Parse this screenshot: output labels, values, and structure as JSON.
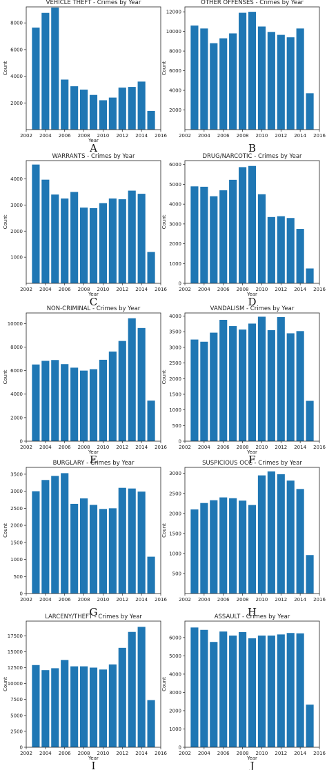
{
  "chart_data": [
    {
      "panel_letter": "A",
      "type": "bar",
      "title": "VEHICLE THEFT - Crimes by Year",
      "xlabel": "Year",
      "ylabel": "Count",
      "x": [
        2003,
        2004,
        2005,
        2006,
        2007,
        2008,
        2009,
        2010,
        2011,
        2012,
        2013,
        2014,
        2015
      ],
      "values": [
        7650,
        8750,
        9150,
        3750,
        3250,
        3000,
        2600,
        2200,
        2400,
        3150,
        3200,
        3600,
        1400
      ],
      "xlim": [
        2002,
        2016
      ],
      "ylim": [
        0,
        9200
      ],
      "xticks": [
        2002,
        2004,
        2006,
        2008,
        2010,
        2012,
        2014,
        2016
      ],
      "yticks": [
        2000,
        4000,
        6000,
        8000
      ],
      "ytick_labels": [
        "2000",
        "4000",
        "6000",
        "8000"
      ],
      "color": "#1f77b4",
      "grid": false
    },
    {
      "panel_letter": "B",
      "type": "bar",
      "title": "OTHER OFFENSES - Crimes by Year",
      "xlabel": "",
      "ylabel": "Count",
      "x": [
        2003,
        2004,
        2005,
        2006,
        2007,
        2008,
        2009,
        2010,
        2011,
        2012,
        2013,
        2014,
        2015
      ],
      "values": [
        10600,
        10300,
        8800,
        9300,
        9800,
        11900,
        12000,
        10500,
        9950,
        9650,
        9400,
        10300,
        3700
      ],
      "xlim": [
        2002,
        2016
      ],
      "ylim": [
        0,
        12500
      ],
      "xticks": [
        2002,
        2004,
        2006,
        2008,
        2010,
        2012,
        2014,
        2016
      ],
      "yticks": [
        2000,
        4000,
        6000,
        8000,
        10000,
        12000
      ],
      "ytick_labels": [
        "2000",
        "4000",
        "6000",
        "8000",
        "10000",
        "12000"
      ],
      "color": "#1f77b4",
      "grid": false
    },
    {
      "panel_letter": "C",
      "type": "bar",
      "title": "WARRANTS - Crimes by Year",
      "xlabel": "Year",
      "ylabel": "Count",
      "x": [
        2003,
        2004,
        2005,
        2006,
        2007,
        2008,
        2009,
        2010,
        2011,
        2012,
        2013,
        2014,
        2015
      ],
      "values": [
        4550,
        3970,
        3400,
        3250,
        3500,
        2900,
        2880,
        3070,
        3250,
        3220,
        3550,
        3430,
        1200
      ],
      "xlim": [
        2002,
        2016
      ],
      "ylim": [
        0,
        4700
      ],
      "xticks": [
        2002,
        2004,
        2006,
        2008,
        2010,
        2012,
        2014,
        2016
      ],
      "yticks": [
        1000,
        2000,
        3000,
        4000
      ],
      "ytick_labels": [
        "1000",
        "2000",
        "3000",
        "4000"
      ],
      "color": "#1f77b4",
      "grid": false
    },
    {
      "panel_letter": "D",
      "type": "bar",
      "title": "DRUG/NARCOTIC - Crimes by Year",
      "xlabel": "Year",
      "ylabel": "Count",
      "x": [
        2003,
        2004,
        2005,
        2006,
        2007,
        2008,
        2009,
        2010,
        2011,
        2012,
        2013,
        2014,
        2015
      ],
      "values": [
        4900,
        4880,
        4400,
        4700,
        5230,
        5870,
        5930,
        4500,
        3350,
        3390,
        3300,
        2750,
        750
      ],
      "xlim": [
        2002,
        2016
      ],
      "ylim": [
        0,
        6200
      ],
      "xticks": [
        2002,
        2004,
        2006,
        2008,
        2010,
        2012,
        2014,
        2016
      ],
      "xtick_labels": [
        "2002",
        "2004",
        "2006",
        "2008",
        "2010",
        "2012",
        "2014",
        "2016"
      ],
      "yticks": [
        0,
        1000,
        2000,
        3000,
        4000,
        5000,
        6000
      ],
      "ytick_labels": [
        "0",
        "1000",
        "2000",
        "3000",
        "4000",
        "5000",
        "6000"
      ],
      "color": "#1f77b4",
      "grid": false
    },
    {
      "panel_letter": "E",
      "type": "bar",
      "title": "NON-CRIMINAL - Crimes by Year",
      "xlabel": "Year",
      "ylabel": "Count",
      "x": [
        2003,
        2004,
        2005,
        2006,
        2007,
        2008,
        2009,
        2010,
        2011,
        2012,
        2013,
        2014,
        2015
      ],
      "values": [
        6520,
        6830,
        6900,
        6550,
        6250,
        6000,
        6120,
        6920,
        7620,
        8520,
        10450,
        9620,
        3450
      ],
      "xlim": [
        2002,
        2016
      ],
      "ylim": [
        0,
        10900
      ],
      "xticks": [
        2002,
        2004,
        2006,
        2008,
        2010,
        2012,
        2014,
        2016
      ],
      "yticks": [
        0,
        2000,
        4000,
        6000,
        8000,
        10000
      ],
      "ytick_labels": [
        "0",
        "2000",
        "4000",
        "6000",
        "8000",
        "10000"
      ],
      "color": "#1f77b4",
      "grid": false
    },
    {
      "panel_letter": "F",
      "type": "bar",
      "title": "VANDALISM - Crimes by Year",
      "xlabel": "Year",
      "ylabel": "Count",
      "x": [
        2003,
        2004,
        2005,
        2006,
        2007,
        2008,
        2009,
        2010,
        2011,
        2012,
        2013,
        2014,
        2015
      ],
      "values": [
        3250,
        3180,
        3470,
        3880,
        3680,
        3570,
        3760,
        3980,
        3550,
        3970,
        3450,
        3520,
        1290
      ],
      "xlim": [
        2002,
        2016
      ],
      "ylim": [
        0,
        4100
      ],
      "xticks": [
        2002,
        2004,
        2006,
        2008,
        2010,
        2012,
        2014,
        2016
      ],
      "yticks": [
        0,
        500,
        1000,
        1500,
        2000,
        2500,
        3000,
        3500,
        4000
      ],
      "ytick_labels": [
        "0",
        "500",
        "1000",
        "1500",
        "2000",
        "2500",
        "3000",
        "3500",
        "4000"
      ],
      "color": "#1f77b4",
      "grid": false
    },
    {
      "panel_letter": "G",
      "type": "bar",
      "title": "BURGLARY - Crimes by Year",
      "xlabel": "",
      "ylabel": "Count",
      "x": [
        2003,
        2004,
        2005,
        2006,
        2007,
        2008,
        2009,
        2010,
        2011,
        2012,
        2013,
        2014,
        2015
      ],
      "values": [
        3000,
        3330,
        3450,
        3530,
        2630,
        2790,
        2600,
        2480,
        2500,
        3100,
        3080,
        2990,
        1080
      ],
      "xlim": [
        2002,
        2016
      ],
      "ylim": [
        0,
        3700
      ],
      "xticks": [
        2002,
        2004,
        2006,
        2008,
        2010,
        2012,
        2014,
        2016
      ],
      "yticks": [
        0,
        500,
        1000,
        1500,
        2000,
        2500,
        3000,
        3500
      ],
      "ytick_labels": [
        "0",
        "500",
        "1000",
        "1500",
        "2000",
        "2500",
        "3000",
        "3500"
      ],
      "color": "#1f77b4",
      "grid": false
    },
    {
      "panel_letter": "H",
      "type": "bar",
      "title": "SUSPICIOUS OCC - Crimes by Year",
      "xlabel": "",
      "ylabel": "Count",
      "x": [
        2003,
        2004,
        2005,
        2006,
        2007,
        2008,
        2009,
        2010,
        2011,
        2012,
        2013,
        2014,
        2015
      ],
      "values": [
        2100,
        2260,
        2330,
        2400,
        2380,
        2320,
        2210,
        2950,
        3050,
        2980,
        2820,
        2610,
        960
      ],
      "xlim": [
        2002,
        2016
      ],
      "ylim": [
        0,
        3150
      ],
      "xticks": [
        2002,
        2004,
        2006,
        2008,
        2010,
        2012,
        2014,
        2016
      ],
      "yticks": [
        500,
        1000,
        1500,
        2000,
        2500,
        3000
      ],
      "ytick_labels": [
        "500",
        "1000",
        "1500",
        "2000",
        "2500",
        "3000"
      ],
      "color": "#1f77b4",
      "grid": false
    },
    {
      "panel_letter": "I",
      "type": "bar",
      "title": "LARCENY/THEFT - Crimes by Year",
      "xlabel": "Year",
      "ylabel": "Count",
      "x": [
        2003,
        2004,
        2005,
        2006,
        2007,
        2008,
        2009,
        2010,
        2011,
        2012,
        2013,
        2014,
        2015
      ],
      "values": [
        12900,
        12100,
        12400,
        13700,
        12700,
        12700,
        12500,
        12200,
        13000,
        15600,
        18100,
        18900,
        7400
      ],
      "xlim": [
        2002,
        2016
      ],
      "ylim": [
        0,
        19800
      ],
      "xticks": [
        2002,
        2004,
        2006,
        2008,
        2010,
        2012,
        2014,
        2016
      ],
      "yticks": [
        0,
        2500,
        5000,
        7500,
        10000,
        12500,
        15000,
        17500
      ],
      "ytick_labels": [
        "0",
        "2500",
        "5000",
        "7500",
        "10000",
        "12500",
        "15000",
        "17500"
      ],
      "color": "#1f77b4",
      "grid": false
    },
    {
      "panel_letter": "J",
      "type": "bar",
      "title": "ASSAULT - Crimes by Year",
      "xlabel": "Year",
      "ylabel": "Count",
      "x": [
        2003,
        2004,
        2005,
        2006,
        2007,
        2008,
        2009,
        2010,
        2011,
        2012,
        2013,
        2014,
        2015
      ],
      "values": [
        6550,
        6420,
        5760,
        6330,
        6110,
        6300,
        5960,
        6110,
        6110,
        6170,
        6250,
        6230,
        2330
      ],
      "xlim": [
        2002,
        2016
      ],
      "ylim": [
        0,
        6900
      ],
      "xticks": [
        2002,
        2004,
        2006,
        2008,
        2010,
        2012,
        2014,
        2016
      ],
      "yticks": [
        0,
        1000,
        2000,
        3000,
        4000,
        5000,
        6000
      ],
      "ytick_labels": [
        "0",
        "1000",
        "2000",
        "3000",
        "4000",
        "5000",
        "6000"
      ],
      "color": "#1f77b4",
      "grid": false
    }
  ]
}
